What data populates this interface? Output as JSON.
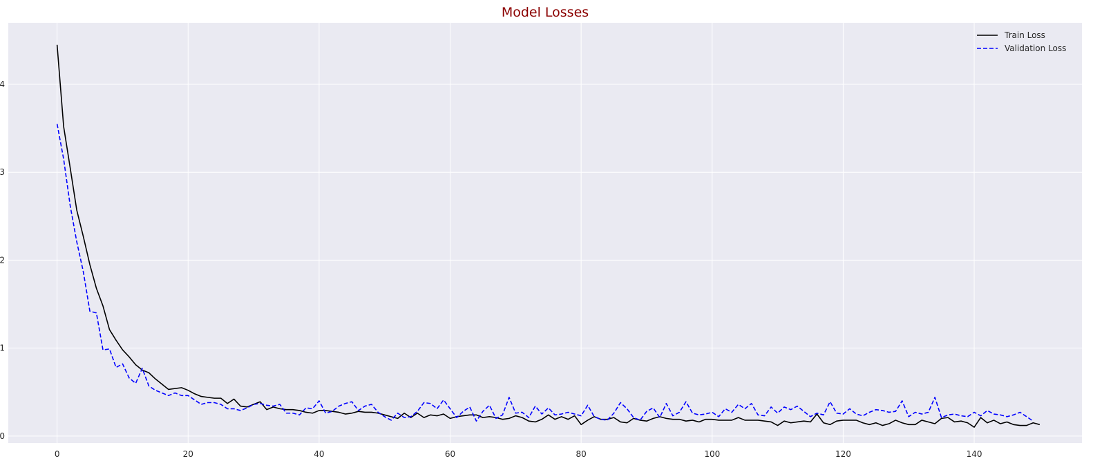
{
  "chart_data": {
    "type": "line",
    "title": "Model Losses",
    "title_color": "#8b0000",
    "xlabel": "",
    "ylabel": "",
    "xlim": [
      -7.45,
      156.45
    ],
    "ylim": [
      -0.08,
      4.7
    ],
    "xticks": [
      0,
      20,
      40,
      60,
      80,
      100,
      120,
      140
    ],
    "yticks": [
      0,
      1,
      2,
      3,
      4
    ],
    "grid": true,
    "background": "#eaeaf2",
    "grid_color": "#ffffff",
    "legend_position": "top-right",
    "series": [
      {
        "name": "Train Loss",
        "color": "#000000",
        "style": "solid",
        "values": [
          4.45,
          3.52,
          3.05,
          2.57,
          2.27,
          1.95,
          1.68,
          1.48,
          1.21,
          1.09,
          0.98,
          0.9,
          0.81,
          0.75,
          0.72,
          0.65,
          0.59,
          0.53,
          0.54,
          0.55,
          0.52,
          0.48,
          0.45,
          0.44,
          0.43,
          0.43,
          0.37,
          0.42,
          0.34,
          0.33,
          0.36,
          0.39,
          0.3,
          0.33,
          0.31,
          0.3,
          0.3,
          0.29,
          0.27,
          0.26,
          0.29,
          0.29,
          0.28,
          0.27,
          0.25,
          0.26,
          0.28,
          0.27,
          0.27,
          0.26,
          0.24,
          0.22,
          0.2,
          0.26,
          0.21,
          0.26,
          0.21,
          0.24,
          0.23,
          0.25,
          0.2,
          0.22,
          0.23,
          0.24,
          0.24,
          0.21,
          0.22,
          0.21,
          0.19,
          0.2,
          0.23,
          0.21,
          0.17,
          0.16,
          0.19,
          0.24,
          0.19,
          0.22,
          0.19,
          0.23,
          0.13,
          0.18,
          0.22,
          0.19,
          0.19,
          0.21,
          0.16,
          0.15,
          0.2,
          0.18,
          0.17,
          0.2,
          0.22,
          0.2,
          0.19,
          0.19,
          0.17,
          0.18,
          0.16,
          0.19,
          0.19,
          0.18,
          0.18,
          0.18,
          0.21,
          0.18,
          0.18,
          0.18,
          0.17,
          0.16,
          0.12,
          0.17,
          0.15,
          0.16,
          0.17,
          0.16,
          0.25,
          0.15,
          0.13,
          0.17,
          0.18,
          0.18,
          0.18,
          0.15,
          0.13,
          0.15,
          0.12,
          0.14,
          0.18,
          0.15,
          0.13,
          0.13,
          0.18,
          0.16,
          0.14,
          0.2,
          0.21,
          0.16,
          0.17,
          0.15,
          0.1,
          0.21,
          0.15,
          0.18,
          0.14,
          0.16,
          0.13,
          0.12,
          0.12,
          0.15,
          0.13
        ]
      },
      {
        "name": "Validation Loss",
        "color": "#0000ff",
        "style": "dashed",
        "values": [
          3.55,
          3.15,
          2.62,
          2.21,
          1.87,
          1.42,
          1.4,
          0.98,
          0.99,
          0.78,
          0.82,
          0.66,
          0.6,
          0.77,
          0.57,
          0.52,
          0.49,
          0.46,
          0.49,
          0.46,
          0.46,
          0.41,
          0.36,
          0.38,
          0.38,
          0.36,
          0.31,
          0.31,
          0.29,
          0.32,
          0.36,
          0.37,
          0.35,
          0.34,
          0.36,
          0.26,
          0.26,
          0.24,
          0.32,
          0.31,
          0.4,
          0.26,
          0.28,
          0.34,
          0.37,
          0.39,
          0.29,
          0.34,
          0.36,
          0.27,
          0.22,
          0.18,
          0.26,
          0.21,
          0.22,
          0.28,
          0.38,
          0.37,
          0.31,
          0.41,
          0.31,
          0.21,
          0.28,
          0.33,
          0.17,
          0.28,
          0.35,
          0.2,
          0.24,
          0.44,
          0.26,
          0.27,
          0.21,
          0.34,
          0.25,
          0.32,
          0.24,
          0.25,
          0.27,
          0.25,
          0.23,
          0.35,
          0.22,
          0.19,
          0.18,
          0.26,
          0.38,
          0.31,
          0.21,
          0.18,
          0.28,
          0.32,
          0.21,
          0.37,
          0.23,
          0.27,
          0.39,
          0.26,
          0.24,
          0.25,
          0.27,
          0.22,
          0.31,
          0.27,
          0.36,
          0.31,
          0.37,
          0.24,
          0.23,
          0.33,
          0.26,
          0.33,
          0.3,
          0.34,
          0.28,
          0.22,
          0.26,
          0.24,
          0.39,
          0.26,
          0.25,
          0.31,
          0.25,
          0.23,
          0.27,
          0.3,
          0.29,
          0.27,
          0.28,
          0.4,
          0.22,
          0.27,
          0.25,
          0.27,
          0.44,
          0.21,
          0.24,
          0.25,
          0.23,
          0.22,
          0.27,
          0.23,
          0.29,
          0.25,
          0.24,
          0.22,
          0.24,
          0.27,
          0.22,
          0.17
        ]
      }
    ]
  }
}
